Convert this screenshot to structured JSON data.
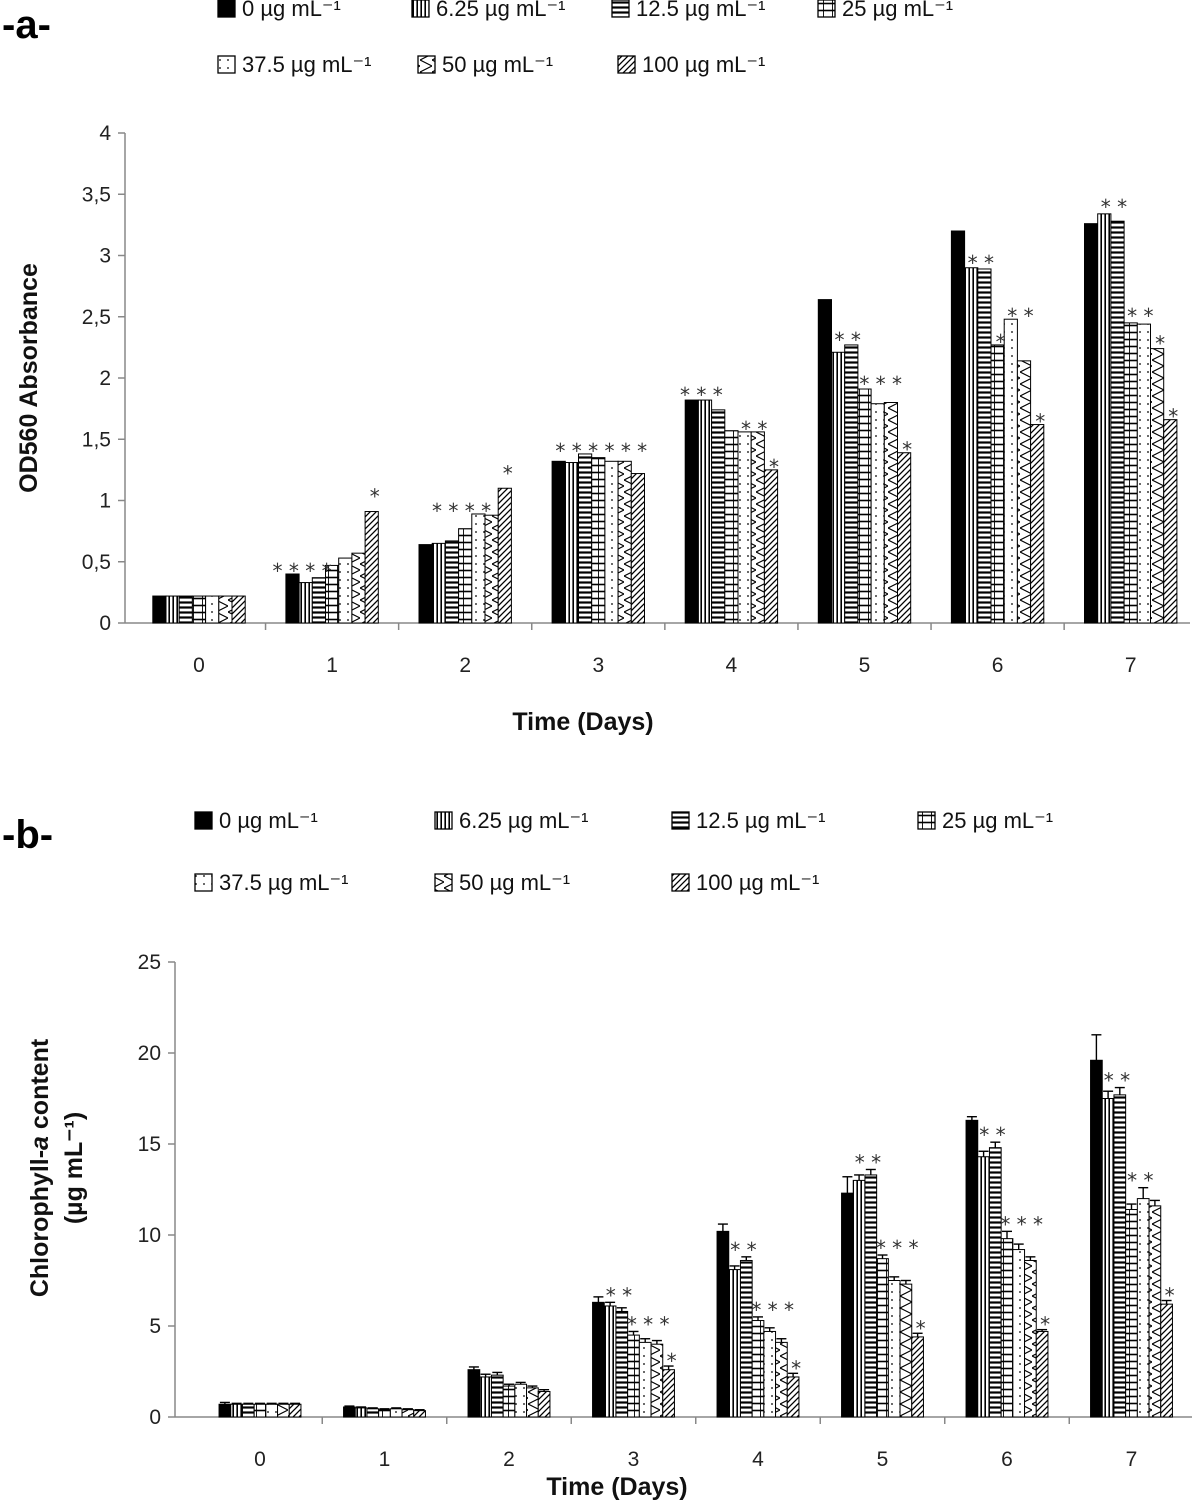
{
  "chart_data": [
    {
      "type": "bar",
      "panel_label": "-a-",
      "title": "",
      "xlabel": "Time (Days)",
      "ylabel": "OD560 Absorbance",
      "ylim": [
        0,
        4
      ],
      "yticks": [
        "0",
        "0,5",
        "1",
        "1,5",
        "2",
        "2,5",
        "3",
        "3,5",
        "4"
      ],
      "ytick_values": [
        0,
        0.5,
        1,
        1.5,
        2,
        2.5,
        3,
        3.5,
        4
      ],
      "categories": [
        "0",
        "1",
        "2",
        "3",
        "4",
        "5",
        "6",
        "7"
      ],
      "legend": [
        "0 µg mL⁻¹",
        "6.25 µg mL⁻¹",
        "12.5 µg mL⁻¹",
        "25 µg mL⁻¹",
        "37.5 µg mL⁻¹",
        "50 µg mL⁻¹",
        "100 µg mL⁻¹"
      ],
      "series": [
        {
          "name": "0 µg mL⁻¹",
          "values": [
            0.22,
            0.4,
            0.64,
            1.32,
            1.82,
            2.64,
            3.2,
            3.26
          ]
        },
        {
          "name": "6.25 µg mL⁻¹",
          "values": [
            0.22,
            0.33,
            0.65,
            1.31,
            1.82,
            2.21,
            2.9,
            3.34
          ]
        },
        {
          "name": "12.5 µg mL⁻¹",
          "values": [
            0.22,
            0.37,
            0.67,
            1.38,
            1.74,
            2.27,
            2.89,
            3.28
          ]
        },
        {
          "name": "25 µg mL⁻¹",
          "values": [
            0.22,
            0.47,
            0.77,
            1.35,
            1.57,
            1.91,
            2.27,
            2.45
          ]
        },
        {
          "name": "37.5 µg mL⁻¹",
          "values": [
            0.22,
            0.53,
            0.89,
            1.32,
            1.56,
            1.79,
            2.48,
            2.44
          ]
        },
        {
          "name": "50 µg mL⁻¹",
          "values": [
            0.22,
            0.57,
            0.88,
            1.32,
            1.56,
            1.8,
            2.14,
            2.24
          ]
        },
        {
          "name": "100 µg mL⁻¹",
          "values": [
            0.22,
            0.91,
            1.1,
            1.22,
            1.25,
            1.39,
            1.62,
            1.66
          ]
        }
      ],
      "error": null,
      "significance": [
        {
          "category": "1",
          "text": "* * * *"
        },
        {
          "category": "1",
          "text": "*"
        },
        {
          "category": "2",
          "text": "* *  * *"
        },
        {
          "category": "2",
          "text": "*"
        },
        {
          "category": "3",
          "text": "* * *  * * *"
        },
        {
          "category": "4",
          "text": "* * *"
        },
        {
          "category": "4",
          "text": "* *"
        },
        {
          "category": "4",
          "text": "*"
        },
        {
          "category": "5",
          "text": "* *"
        },
        {
          "category": "5",
          "text": "*  * *"
        },
        {
          "category": "5",
          "text": "*"
        },
        {
          "category": "6",
          "text": "* *"
        },
        {
          "category": "6",
          "text": "*"
        },
        {
          "category": "6",
          "text": "* *"
        },
        {
          "category": "6",
          "text": "*"
        },
        {
          "category": "7",
          "text": "* *"
        },
        {
          "category": "7",
          "text": "* *"
        },
        {
          "category": "7",
          "text": "*"
        },
        {
          "category": "7",
          "text": "*"
        }
      ]
    },
    {
      "type": "bar",
      "panel_label": "-b-",
      "title": "",
      "xlabel": "Time (Days)",
      "ylabel": "Chlorophyll-a content",
      "ylabel_italic_part": "a",
      "ylabel_line2": "(µg mL⁻¹)",
      "ylim": [
        0,
        25
      ],
      "yticks": [
        "0",
        "5",
        "10",
        "15",
        "20",
        "25"
      ],
      "ytick_values": [
        0,
        5,
        10,
        15,
        20,
        25
      ],
      "categories": [
        "0",
        "1",
        "2",
        "3",
        "4",
        "5",
        "6",
        "7"
      ],
      "legend": [
        "0 µg mL⁻¹",
        "6.25 µg mL⁻¹",
        "12.5 µg mL⁻¹",
        "25 µg mL⁻¹",
        "37.5 µg mL⁻¹",
        "50 µg mL⁻¹",
        "100 µg mL⁻¹"
      ],
      "series": [
        {
          "name": "0 µg mL⁻¹",
          "values": [
            0.7,
            0.55,
            2.6,
            6.3,
            10.2,
            12.3,
            16.3,
            19.6
          ]
        },
        {
          "name": "6.25 µg mL⁻¹",
          "values": [
            0.7,
            0.5,
            2.2,
            6.1,
            8.1,
            13.0,
            14.3,
            17.5
          ]
        },
        {
          "name": "12.5 µg mL⁻¹",
          "values": [
            0.7,
            0.45,
            2.3,
            5.8,
            8.6,
            13.3,
            14.8,
            17.7
          ]
        },
        {
          "name": "25 µg mL⁻¹",
          "values": [
            0.7,
            0.4,
            1.7,
            4.5,
            5.3,
            8.7,
            9.8,
            11.4
          ]
        },
        {
          "name": "37.5 µg mL⁻¹",
          "values": [
            0.7,
            0.45,
            1.8,
            4.1,
            4.7,
            7.5,
            9.2,
            12.0
          ]
        },
        {
          "name": "50 µg mL⁻¹",
          "values": [
            0.7,
            0.4,
            1.6,
            4.0,
            4.1,
            7.3,
            8.6,
            11.6
          ]
        },
        {
          "name": "100 µg mL⁻¹",
          "values": [
            0.7,
            0.35,
            1.4,
            2.6,
            2.2,
            4.4,
            4.7,
            6.2
          ]
        }
      ],
      "errors": [
        [
          0.1,
          0.05,
          0.15,
          0.3,
          0.4,
          0.9,
          0.2,
          1.4
        ],
        [
          0.05,
          0.05,
          0.15,
          0.2,
          0.2,
          0.3,
          0.3,
          0.4
        ],
        [
          0.05,
          0.05,
          0.15,
          0.2,
          0.2,
          0.3,
          0.3,
          0.4
        ],
        [
          0.05,
          0.05,
          0.1,
          0.2,
          0.2,
          0.2,
          0.4,
          0.3
        ],
        [
          0.05,
          0.05,
          0.1,
          0.2,
          0.2,
          0.2,
          0.3,
          0.6
        ],
        [
          0.05,
          0.05,
          0.1,
          0.2,
          0.2,
          0.2,
          0.2,
          0.3
        ],
        [
          0.05,
          0.05,
          0.1,
          0.2,
          0.2,
          0.2,
          0.1,
          0.2
        ]
      ],
      "significance": [
        {
          "category": "3",
          "text": "* *"
        },
        {
          "category": "3",
          "text": "* * *"
        },
        {
          "category": "3",
          "text": "*"
        },
        {
          "category": "4",
          "text": "* *"
        },
        {
          "category": "4",
          "text": "*  * *"
        },
        {
          "category": "4",
          "text": "*"
        },
        {
          "category": "5",
          "text": "* *"
        },
        {
          "category": "5",
          "text": "*  * *"
        },
        {
          "category": "5",
          "text": "*"
        },
        {
          "category": "6",
          "text": "* *"
        },
        {
          "category": "6",
          "text": "*  * *"
        },
        {
          "category": "6",
          "text": "*"
        },
        {
          "category": "7",
          "text": "* *"
        },
        {
          "category": "7",
          "text": "* *"
        },
        {
          "category": "7",
          "text": "*"
        }
      ]
    }
  ],
  "colors": {
    "axis": "#888888",
    "bar_dark": "#000000",
    "bar_stroke": "#000000"
  }
}
